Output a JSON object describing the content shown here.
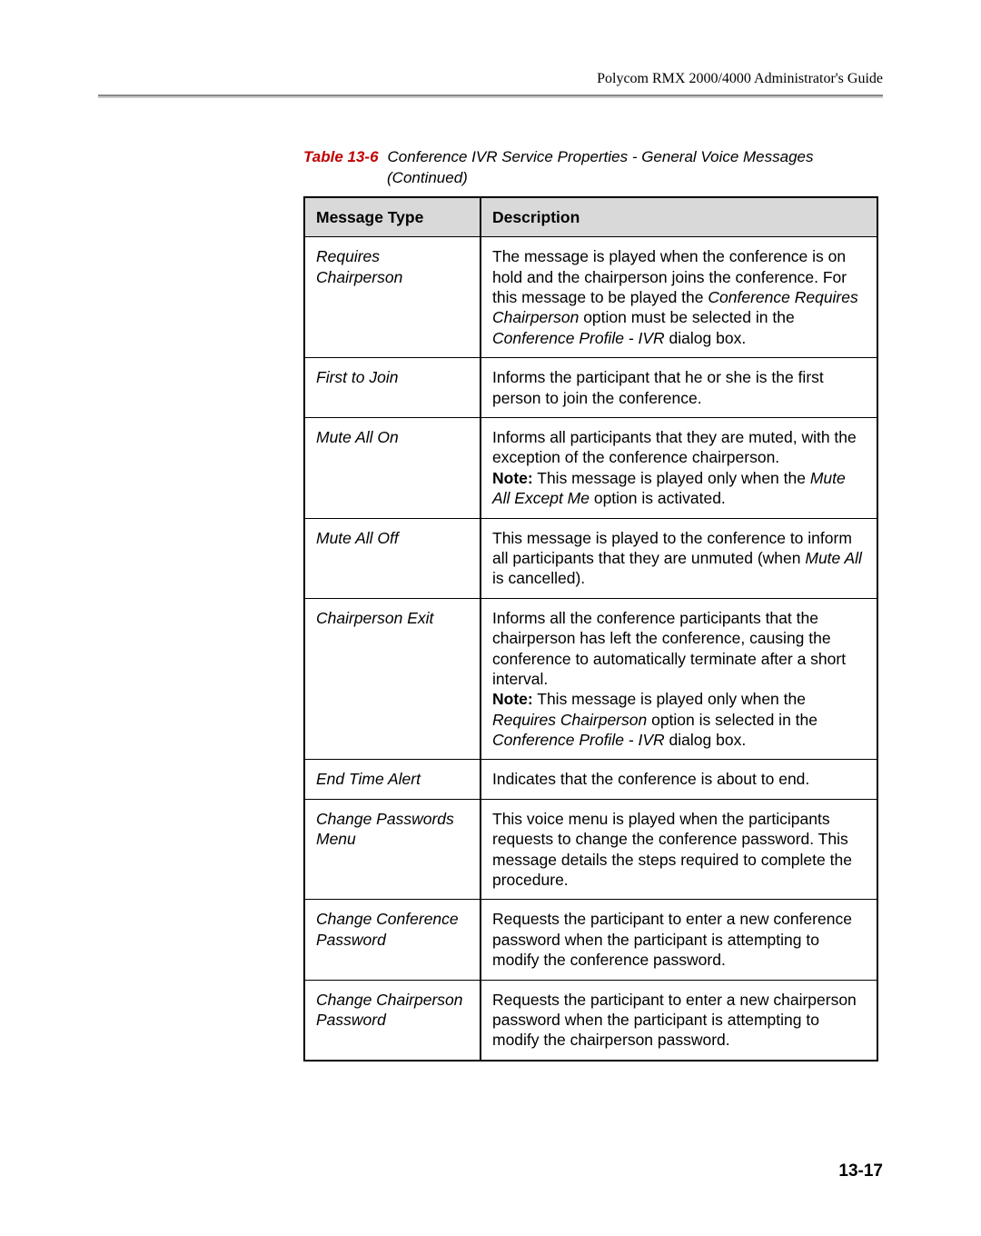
{
  "header": {
    "text": "Polycom RMX 2000/4000 Administrator's Guide"
  },
  "caption": {
    "label": "Table 13-6",
    "title": "Conference IVR Service Properties - General Voice Messages",
    "cont": "(Continued)"
  },
  "table": {
    "header_col1": "Message Type",
    "header_col2": "Description",
    "rows": [
      {
        "msg": "Requires Chairperson",
        "desc_html": "The message is played when the conference is on hold and the chairperson joins the conference. For this message to be played the <span class=\"i\">Conference Requires Chairperson</span> option must be selected in the <span class=\"i\">Conference Profile - IVR</span> dialog box."
      },
      {
        "msg": "First to Join",
        "desc_html": "Informs the participant that he or she is the first person to join the conference."
      },
      {
        "msg": "Mute All On",
        "desc_html": "Informs all participants that they are muted, with the exception of the conference chairperson.<br><span class=\"b\">Note:</span> This message is played only when the <span class=\"i\">Mute All Except Me</span> option is activated."
      },
      {
        "msg": "Mute All Off",
        "desc_html": "This message is played to the conference to inform all participants that they are unmuted (when <span class=\"i\">Mute All</span> is cancelled)."
      },
      {
        "msg": "Chairperson Exit",
        "desc_html": "Informs all the conference participants that the chairperson has left the conference, causing the conference to automatically terminate after a short interval.<br><span class=\"b\">Note:</span> This message is played only when the <span class=\"i\">Requires Chairperson</span> option is selected in the <span class=\"i\">Conference Profile - IVR</span> dialog box."
      },
      {
        "msg": "End Time Alert",
        "desc_html": "Indicates that the conference is about to end."
      },
      {
        "msg": "Change Passwords Menu",
        "desc_html": "This voice menu is played when the participants requests to change the conference password. This message details the steps required to complete the procedure."
      },
      {
        "msg": "Change Conference Password",
        "desc_html": "Requests the participant to enter a new conference password when the participant is attempting to modify the conference password."
      },
      {
        "msg": "Change Chairperson Password",
        "desc_html": "Requests the participant to enter a new chairperson password when the participant is attempting to modify the chairperson password."
      }
    ]
  },
  "page_number": "13-17"
}
